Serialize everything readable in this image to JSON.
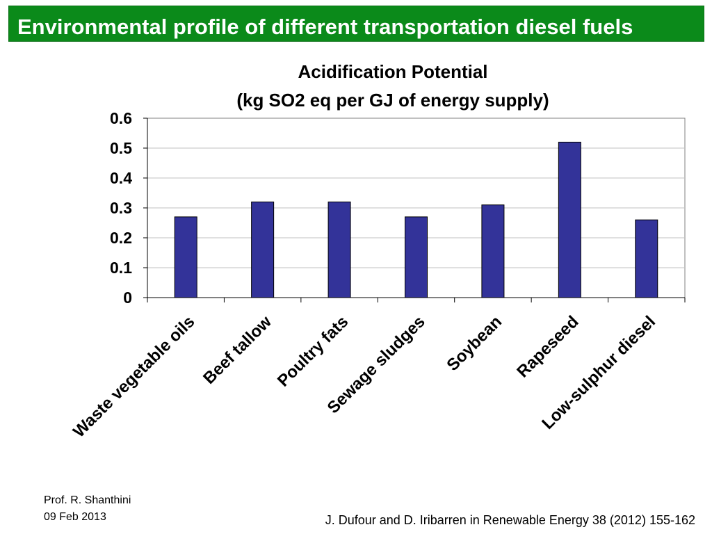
{
  "header": {
    "title": "Environmental profile of different transportation diesel fuels"
  },
  "chart_data": {
    "type": "bar",
    "title": "Acidification Potential",
    "subtitle": "(kg SO2 eq per GJ of energy supply)",
    "categories": [
      "Waste vegetable oils",
      "Beef tallow",
      "Poultry fats",
      "Sewage sludges",
      "Soybean",
      "Rapeseed",
      "Low-sulphur diesel"
    ],
    "values": [
      0.27,
      0.32,
      0.32,
      0.27,
      0.31,
      0.52,
      0.26
    ],
    "y_ticks": [
      "0",
      "0.1",
      "0.2",
      "0.3",
      "0.4",
      "0.5",
      "0.6"
    ],
    "ylim": [
      0,
      0.6
    ],
    "grid": true,
    "legend": "none",
    "bar_color": "#333399",
    "xlabel": "",
    "ylabel": ""
  },
  "footer": {
    "author": "Prof. R. Shanthini",
    "date": "09 Feb 2013",
    "citation": "J. Dufour and D. Iribarren in Renewable Energy 38 (2012) 155-162"
  },
  "colors": {
    "banner": "#0b8a1a",
    "banner_text": "#ffffff"
  }
}
